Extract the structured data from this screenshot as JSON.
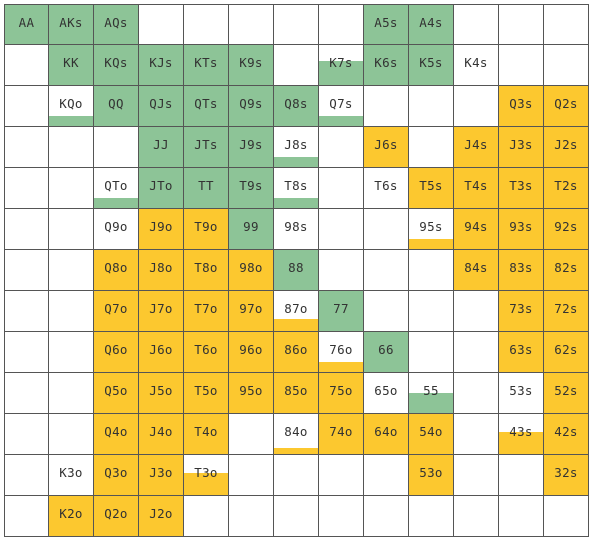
{
  "colors": {
    "green": "#8dc497",
    "yellow": "#fcc82f",
    "empty": "#ffffff",
    "grid_line": "#555555",
    "text": "#333333"
  },
  "grid": {
    "rows": [
      [
        {
          "label": "AA",
          "color": "green",
          "level": 1
        },
        {
          "label": "AKs",
          "color": "green",
          "level": 1
        },
        {
          "label": "AQs",
          "color": "green",
          "level": 1
        },
        {
          "label": "",
          "color": "",
          "level": 0
        },
        {
          "label": "",
          "color": "",
          "level": 0
        },
        {
          "label": "",
          "color": "",
          "level": 0
        },
        {
          "label": "",
          "color": "",
          "level": 0
        },
        {
          "label": "",
          "color": "",
          "level": 0
        },
        {
          "label": "A5s",
          "color": "green",
          "level": 1
        },
        {
          "label": "A4s",
          "color": "green",
          "level": 1
        },
        {
          "label": "",
          "color": "",
          "level": 0
        },
        {
          "label": "",
          "color": "",
          "level": 0
        },
        {
          "label": "",
          "color": "",
          "level": 0
        }
      ],
      [
        {
          "label": "",
          "color": "",
          "level": 0
        },
        {
          "label": "KK",
          "color": "green",
          "level": 1
        },
        {
          "label": "KQs",
          "color": "green",
          "level": 1
        },
        {
          "label": "KJs",
          "color": "green",
          "level": 1
        },
        {
          "label": "KTs",
          "color": "green",
          "level": 1
        },
        {
          "label": "K9s",
          "color": "green",
          "level": 1
        },
        {
          "label": "",
          "color": "",
          "level": 0
        },
        {
          "label": "K7s",
          "color": "green",
          "level": 0.6
        },
        {
          "label": "K6s",
          "color": "green",
          "level": 1
        },
        {
          "label": "K5s",
          "color": "green",
          "level": 1
        },
        {
          "label": "K4s",
          "color": "",
          "level": 0
        },
        {
          "label": "",
          "color": "",
          "level": 0
        },
        {
          "label": "",
          "color": "",
          "level": 0
        }
      ],
      [
        {
          "label": "",
          "color": "",
          "level": 0
        },
        {
          "label": "KQo",
          "color": "green",
          "level": 0.25
        },
        {
          "label": "QQ",
          "color": "green",
          "level": 1
        },
        {
          "label": "QJs",
          "color": "green",
          "level": 1
        },
        {
          "label": "QTs",
          "color": "green",
          "level": 1
        },
        {
          "label": "Q9s",
          "color": "green",
          "level": 1
        },
        {
          "label": "Q8s",
          "color": "green",
          "level": 1
        },
        {
          "label": "Q7s",
          "color": "green",
          "level": 0.25
        },
        {
          "label": "",
          "color": "",
          "level": 0
        },
        {
          "label": "",
          "color": "",
          "level": 0
        },
        {
          "label": "",
          "color": "",
          "level": 0
        },
        {
          "label": "Q3s",
          "color": "yellow",
          "level": 1
        },
        {
          "label": "Q2s",
          "color": "yellow",
          "level": 1
        }
      ],
      [
        {
          "label": "",
          "color": "",
          "level": 0
        },
        {
          "label": "",
          "color": "",
          "level": 0
        },
        {
          "label": "",
          "color": "",
          "level": 0
        },
        {
          "label": "JJ",
          "color": "green",
          "level": 1
        },
        {
          "label": "JTs",
          "color": "green",
          "level": 1
        },
        {
          "label": "J9s",
          "color": "green",
          "level": 1
        },
        {
          "label": "J8s",
          "color": "green",
          "level": 0.25
        },
        {
          "label": "",
          "color": "",
          "level": 0
        },
        {
          "label": "J6s",
          "color": "yellow",
          "level": 1
        },
        {
          "label": "",
          "color": "",
          "level": 0
        },
        {
          "label": "J4s",
          "color": "yellow",
          "level": 1
        },
        {
          "label": "J3s",
          "color": "yellow",
          "level": 1
        },
        {
          "label": "J2s",
          "color": "yellow",
          "level": 1
        }
      ],
      [
        {
          "label": "",
          "color": "",
          "level": 0
        },
        {
          "label": "",
          "color": "",
          "level": 0
        },
        {
          "label": "QTo",
          "color": "green",
          "level": 0.25
        },
        {
          "label": "JTo",
          "color": "green",
          "level": 1
        },
        {
          "label": "TT",
          "color": "green",
          "level": 1
        },
        {
          "label": "T9s",
          "color": "green",
          "level": 1
        },
        {
          "label": "T8s",
          "color": "green",
          "level": 0.25
        },
        {
          "label": "",
          "color": "",
          "level": 0
        },
        {
          "label": "T6s",
          "color": "",
          "level": 0
        },
        {
          "label": "T5s",
          "color": "yellow",
          "level": 1
        },
        {
          "label": "T4s",
          "color": "yellow",
          "level": 1
        },
        {
          "label": "T3s",
          "color": "yellow",
          "level": 1
        },
        {
          "label": "T2s",
          "color": "yellow",
          "level": 1
        }
      ],
      [
        {
          "label": "",
          "color": "",
          "level": 0
        },
        {
          "label": "",
          "color": "",
          "level": 0
        },
        {
          "label": "Q9o",
          "color": "",
          "level": 0
        },
        {
          "label": "J9o",
          "color": "yellow",
          "level": 1
        },
        {
          "label": "T9o",
          "color": "yellow",
          "level": 1
        },
        {
          "label": "99",
          "color": "green",
          "level": 1
        },
        {
          "label": "98s",
          "color": "",
          "level": 0
        },
        {
          "label": "",
          "color": "",
          "level": 0
        },
        {
          "label": "",
          "color": "",
          "level": 0
        },
        {
          "label": "95s",
          "color": "yellow",
          "level": 0.25
        },
        {
          "label": "94s",
          "color": "yellow",
          "level": 1
        },
        {
          "label": "93s",
          "color": "yellow",
          "level": 1
        },
        {
          "label": "92s",
          "color": "yellow",
          "level": 1
        }
      ],
      [
        {
          "label": "",
          "color": "",
          "level": 0
        },
        {
          "label": "",
          "color": "",
          "level": 0
        },
        {
          "label": "Q8o",
          "color": "yellow",
          "level": 1
        },
        {
          "label": "J8o",
          "color": "yellow",
          "level": 1
        },
        {
          "label": "T8o",
          "color": "yellow",
          "level": 1
        },
        {
          "label": "98o",
          "color": "yellow",
          "level": 1
        },
        {
          "label": "88",
          "color": "green",
          "level": 1
        },
        {
          "label": "",
          "color": "",
          "level": 0
        },
        {
          "label": "",
          "color": "",
          "level": 0
        },
        {
          "label": "",
          "color": "",
          "level": 0
        },
        {
          "label": "84s",
          "color": "yellow",
          "level": 1
        },
        {
          "label": "83s",
          "color": "yellow",
          "level": 1
        },
        {
          "label": "82s",
          "color": "yellow",
          "level": 1
        }
      ],
      [
        {
          "label": "",
          "color": "",
          "level": 0
        },
        {
          "label": "",
          "color": "",
          "level": 0
        },
        {
          "label": "Q7o",
          "color": "yellow",
          "level": 1
        },
        {
          "label": "J7o",
          "color": "yellow",
          "level": 1
        },
        {
          "label": "T7o",
          "color": "yellow",
          "level": 1
        },
        {
          "label": "97o",
          "color": "yellow",
          "level": 1
        },
        {
          "label": "87o",
          "color": "yellow",
          "level": 0.3
        },
        {
          "label": "77",
          "color": "green",
          "level": 1
        },
        {
          "label": "",
          "color": "",
          "level": 0
        },
        {
          "label": "",
          "color": "",
          "level": 0
        },
        {
          "label": "",
          "color": "",
          "level": 0
        },
        {
          "label": "73s",
          "color": "yellow",
          "level": 1
        },
        {
          "label": "72s",
          "color": "yellow",
          "level": 1
        }
      ],
      [
        {
          "label": "",
          "color": "",
          "level": 0
        },
        {
          "label": "",
          "color": "",
          "level": 0
        },
        {
          "label": "Q6o",
          "color": "yellow",
          "level": 1
        },
        {
          "label": "J6o",
          "color": "yellow",
          "level": 1
        },
        {
          "label": "T6o",
          "color": "yellow",
          "level": 1
        },
        {
          "label": "96o",
          "color": "yellow",
          "level": 1
        },
        {
          "label": "86o",
          "color": "yellow",
          "level": 1
        },
        {
          "label": "76o",
          "color": "yellow",
          "level": 0.25
        },
        {
          "label": "66",
          "color": "green",
          "level": 1
        },
        {
          "label": "",
          "color": "",
          "level": 0
        },
        {
          "label": "",
          "color": "",
          "level": 0
        },
        {
          "label": "63s",
          "color": "yellow",
          "level": 1
        },
        {
          "label": "62s",
          "color": "yellow",
          "level": 1
        }
      ],
      [
        {
          "label": "",
          "color": "",
          "level": 0
        },
        {
          "label": "",
          "color": "",
          "level": 0
        },
        {
          "label": "Q5o",
          "color": "yellow",
          "level": 1
        },
        {
          "label": "J5o",
          "color": "yellow",
          "level": 1
        },
        {
          "label": "T5o",
          "color": "yellow",
          "level": 1
        },
        {
          "label": "95o",
          "color": "yellow",
          "level": 1
        },
        {
          "label": "85o",
          "color": "yellow",
          "level": 1
        },
        {
          "label": "75o",
          "color": "yellow",
          "level": 1
        },
        {
          "label": "65o",
          "color": "",
          "level": 0
        },
        {
          "label": "55",
          "color": "green",
          "level": 0.5
        },
        {
          "label": "",
          "color": "",
          "level": 0
        },
        {
          "label": "53s",
          "color": "",
          "level": 0
        },
        {
          "label": "52s",
          "color": "yellow",
          "level": 1
        }
      ],
      [
        {
          "label": "",
          "color": "",
          "level": 0
        },
        {
          "label": "",
          "color": "",
          "level": 0
        },
        {
          "label": "Q4o",
          "color": "yellow",
          "level": 1
        },
        {
          "label": "J4o",
          "color": "yellow",
          "level": 1
        },
        {
          "label": "T4o",
          "color": "yellow",
          "level": 1
        },
        {
          "label": "",
          "color": "",
          "level": 0
        },
        {
          "label": "84o",
          "color": "yellow",
          "level": 0.15
        },
        {
          "label": "74o",
          "color": "yellow",
          "level": 1
        },
        {
          "label": "64o",
          "color": "yellow",
          "level": 1
        },
        {
          "label": "54o",
          "color": "yellow",
          "level": 1
        },
        {
          "label": "",
          "color": "",
          "level": 0
        },
        {
          "label": "43s",
          "color": "yellow",
          "level": 0.55
        },
        {
          "label": "42s",
          "color": "yellow",
          "level": 1
        }
      ],
      [
        {
          "label": "",
          "color": "",
          "level": 0
        },
        {
          "label": "K3o",
          "color": "",
          "level": 0
        },
        {
          "label": "Q3o",
          "color": "yellow",
          "level": 1
        },
        {
          "label": "J3o",
          "color": "yellow",
          "level": 1
        },
        {
          "label": "T3o",
          "color": "yellow",
          "level": 0.55
        },
        {
          "label": "",
          "color": "",
          "level": 0
        },
        {
          "label": "",
          "color": "",
          "level": 0
        },
        {
          "label": "",
          "color": "",
          "level": 0
        },
        {
          "label": "",
          "color": "",
          "level": 0
        },
        {
          "label": "53o",
          "color": "yellow",
          "level": 1
        },
        {
          "label": "",
          "color": "",
          "level": 0
        },
        {
          "label": "",
          "color": "",
          "level": 0
        },
        {
          "label": "32s",
          "color": "yellow",
          "level": 1
        }
      ],
      [
        {
          "label": "",
          "color": "",
          "level": 0
        },
        {
          "label": "K2o",
          "color": "yellow",
          "level": 1
        },
        {
          "label": "Q2o",
          "color": "yellow",
          "level": 1
        },
        {
          "label": "J2o",
          "color": "yellow",
          "level": 1
        },
        {
          "label": "",
          "color": "",
          "level": 0
        },
        {
          "label": "",
          "color": "",
          "level": 0
        },
        {
          "label": "",
          "color": "",
          "level": 0
        },
        {
          "label": "",
          "color": "",
          "level": 0
        },
        {
          "label": "",
          "color": "",
          "level": 0
        },
        {
          "label": "",
          "color": "",
          "level": 0
        },
        {
          "label": "",
          "color": "",
          "level": 0
        },
        {
          "label": "",
          "color": "",
          "level": 0
        },
        {
          "label": "",
          "color": "",
          "level": 0
        }
      ]
    ]
  }
}
